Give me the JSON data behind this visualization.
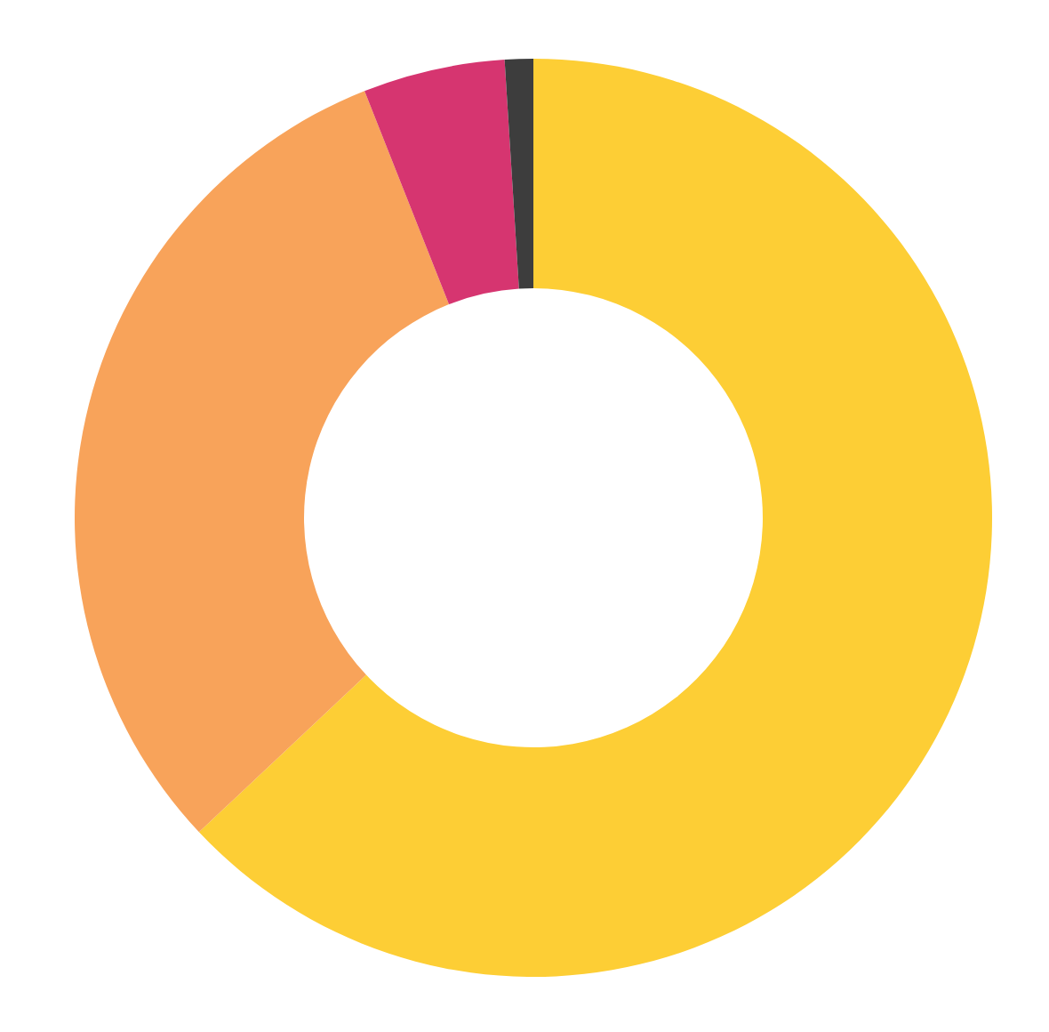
{
  "chart_data": {
    "type": "donut",
    "categories": [
      null,
      null,
      null,
      null
    ],
    "values": [
      63,
      31,
      5,
      1
    ],
    "colors": [
      "#fdce35",
      "#f8a35a",
      "#d63570",
      "#3d3d3d"
    ]
  }
}
